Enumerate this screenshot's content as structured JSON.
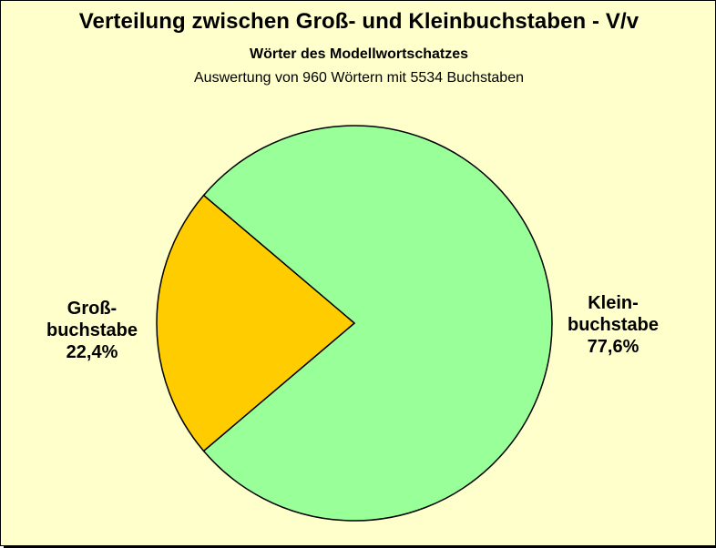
{
  "colors": {
    "background": "#ffffcc",
    "gross": "#ffcc00",
    "klein": "#99ff99",
    "outline": "#000000"
  },
  "chart_data": {
    "type": "pie",
    "title": "Verteilung zwischen Groß- und  Kleinbuchstaben - V/v",
    "subtitle": "Wörter des Modellwortschatzes",
    "note": "Auswertung von 960 Wörtern mit 5534 Buchstaben",
    "slices": [
      {
        "label_lines": [
          "Klein-",
          "buchstabe"
        ],
        "percent_label": "77,6%",
        "value": 77.6,
        "color": "#99ff99"
      },
      {
        "label_lines": [
          "Groß-",
          "buchstabe"
        ],
        "percent_label": "22,4%",
        "value": 22.4,
        "color": "#ffcc00"
      }
    ]
  }
}
